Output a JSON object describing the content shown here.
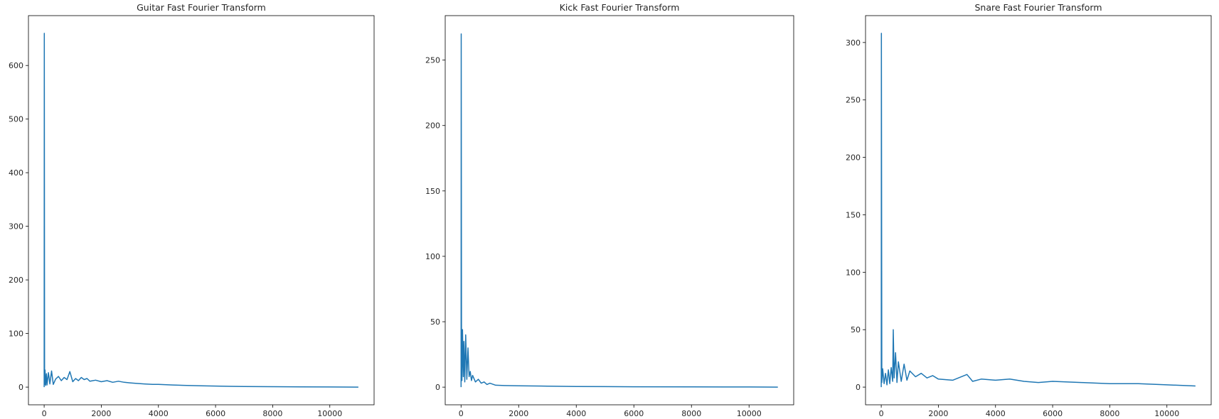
{
  "chart_data": [
    {
      "type": "line",
      "title": "Guitar Fast Fourier Transform",
      "xlabel": "",
      "ylabel": "",
      "xlim": [
        -550,
        11550
      ],
      "ylim": [
        -33,
        693
      ],
      "xticks": [
        0,
        2000,
        4000,
        6000,
        8000,
        10000
      ],
      "yticks": [
        0,
        100,
        200,
        300,
        400,
        500,
        600
      ],
      "xtick_labels": [
        "0",
        "2000",
        "4000",
        "6000",
        "8000",
        "10000"
      ],
      "ytick_labels": [
        "0",
        "100",
        "200",
        "300",
        "400",
        "500",
        "600"
      ],
      "grid": false,
      "color": "#1f77b4",
      "series": [
        {
          "x": [
            0,
            5,
            15,
            30,
            50,
            80,
            100,
            150,
            200,
            260,
            320,
            400,
            500,
            600,
            700,
            800,
            900,
            1000,
            1100,
            1200,
            1300,
            1400,
            1500,
            1600,
            1800,
            2000,
            2200,
            2400,
            2600,
            2800,
            3000,
            3200,
            3500,
            3800,
            4000,
            4500,
            5000,
            5500,
            6000,
            6500,
            7000,
            8000,
            9000,
            10000,
            11000
          ],
          "y": [
            0,
            660,
            5,
            32,
            3,
            25,
            4,
            27,
            6,
            30,
            5,
            15,
            20,
            12,
            18,
            14,
            29,
            10,
            16,
            12,
            18,
            14,
            16,
            11,
            13,
            10,
            12,
            9,
            11,
            9,
            8,
            7,
            6,
            5,
            5,
            4,
            3,
            2.5,
            2,
            1.5,
            1,
            0.8,
            0.5,
            0.3,
            0
          ]
        }
      ]
    },
    {
      "type": "line",
      "title": "Kick Fast Fourier Transform",
      "xlabel": "",
      "ylabel": "",
      "xlim": [
        -550,
        11550
      ],
      "ylim": [
        -13.5,
        284
      ],
      "xticks": [
        0,
        2000,
        4000,
        6000,
        8000,
        10000
      ],
      "yticks": [
        0,
        50,
        100,
        150,
        200,
        250
      ],
      "xtick_labels": [
        "0",
        "2000",
        "4000",
        "6000",
        "8000",
        "10000"
      ],
      "ytick_labels": [
        "0",
        "50",
        "100",
        "150",
        "200",
        "250"
      ],
      "grid": false,
      "color": "#1f77b4",
      "series": [
        {
          "x": [
            0,
            5,
            15,
            30,
            50,
            80,
            100,
            130,
            160,
            200,
            240,
            280,
            320,
            360,
            400,
            500,
            600,
            700,
            800,
            900,
            1000,
            1200,
            1500,
            2000,
            3000,
            4000,
            5000,
            6000,
            8000,
            10000,
            11000
          ],
          "y": [
            0,
            270,
            45,
            5,
            44,
            8,
            35,
            4,
            40,
            6,
            30,
            8,
            12,
            5,
            9,
            4,
            6,
            3,
            4,
            2,
            3,
            1.5,
            1.2,
            1,
            0.8,
            0.5,
            0.4,
            0.3,
            0.2,
            0.1,
            0
          ]
        }
      ]
    },
    {
      "type": "line",
      "title": "Snare Fast Fourier Transform",
      "xlabel": "",
      "ylabel": "",
      "xlim": [
        -550,
        11550
      ],
      "ylim": [
        -15.4,
        323.4
      ],
      "xticks": [
        0,
        2000,
        4000,
        6000,
        8000,
        10000
      ],
      "yticks": [
        0,
        50,
        100,
        150,
        200,
        250,
        300
      ],
      "xtick_labels": [
        "0",
        "2000",
        "4000",
        "6000",
        "8000",
        "10000"
      ],
      "ytick_labels": [
        "0",
        "50",
        "100",
        "150",
        "200",
        "250",
        "300"
      ],
      "grid": false,
      "color": "#1f77b4",
      "series": [
        {
          "x": [
            0,
            5,
            20,
            50,
            100,
            150,
            200,
            250,
            300,
            350,
            400,
            420,
            450,
            500,
            550,
            600,
            700,
            800,
            900,
            1000,
            1200,
            1400,
            1600,
            1800,
            2000,
            2500,
            3000,
            3200,
            3500,
            4000,
            4500,
            5000,
            5500,
            6000,
            7000,
            8000,
            9000,
            10000,
            11000
          ],
          "y": [
            0,
            308,
            4,
            16,
            3,
            12,
            2,
            15,
            3,
            17,
            5,
            50,
            8,
            30,
            4,
            22,
            5,
            20,
            6,
            14,
            9,
            12,
            8,
            10,
            7,
            6,
            11,
            5,
            7,
            6,
            7,
            5,
            4,
            5,
            4,
            3,
            3,
            2,
            1
          ]
        }
      ]
    }
  ]
}
